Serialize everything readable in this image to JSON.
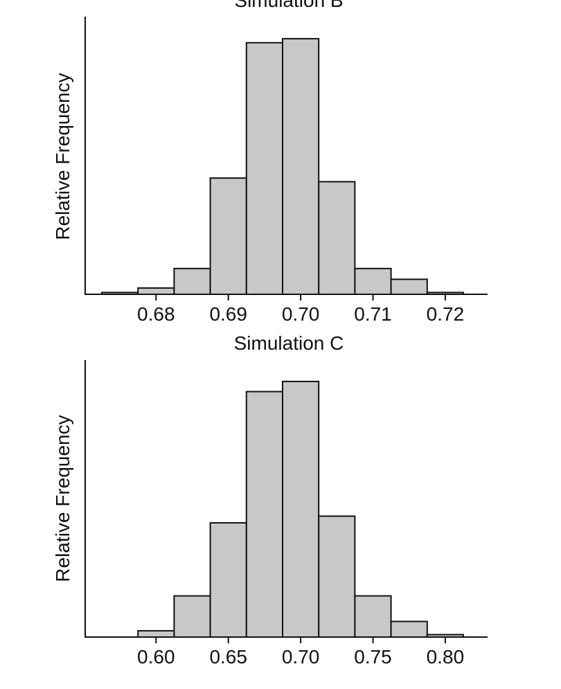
{
  "chart_data": [
    {
      "type": "bar",
      "title": "Simulation B",
      "xlabel": "",
      "ylabel": "Relative Frequency",
      "xlim": [
        0.6725,
        0.7275
      ],
      "ylim": [
        0,
        1
      ],
      "bin_width": 0.005,
      "bins": [
        0.675,
        0.68,
        0.685,
        0.69,
        0.695,
        0.7,
        0.705,
        0.71,
        0.715,
        0.72
      ],
      "values": [
        0.009,
        0.031,
        0.127,
        0.573,
        1.24,
        1.26,
        0.555,
        0.127,
        0.074,
        0.009
      ],
      "ymax": 1.28,
      "ticks": [
        0.68,
        0.69,
        0.7,
        0.71,
        0.72
      ],
      "tick_labels": [
        "0.68",
        "0.69",
        "0.70",
        "0.71",
        "0.72"
      ]
    },
    {
      "type": "bar",
      "title": "Simulation C",
      "xlabel": "",
      "ylabel": "Relative Frequency",
      "xlim": [
        0.5625,
        0.8375
      ],
      "ylim": [
        0,
        1
      ],
      "bin_width": 0.025,
      "bins": [
        0.575,
        0.6,
        0.625,
        0.65,
        0.675,
        0.7,
        0.725,
        0.75,
        0.775,
        0.8
      ],
      "values": [
        0.0,
        0.031,
        0.203,
        0.563,
        1.21,
        1.26,
        0.596,
        0.203,
        0.077,
        0.012
      ],
      "ymax": 1.28,
      "ticks": [
        0.6,
        0.65,
        0.7,
        0.75,
        0.8
      ],
      "tick_labels": [
        "0.60",
        "0.65",
        "0.70",
        "0.75",
        "0.80"
      ]
    }
  ]
}
